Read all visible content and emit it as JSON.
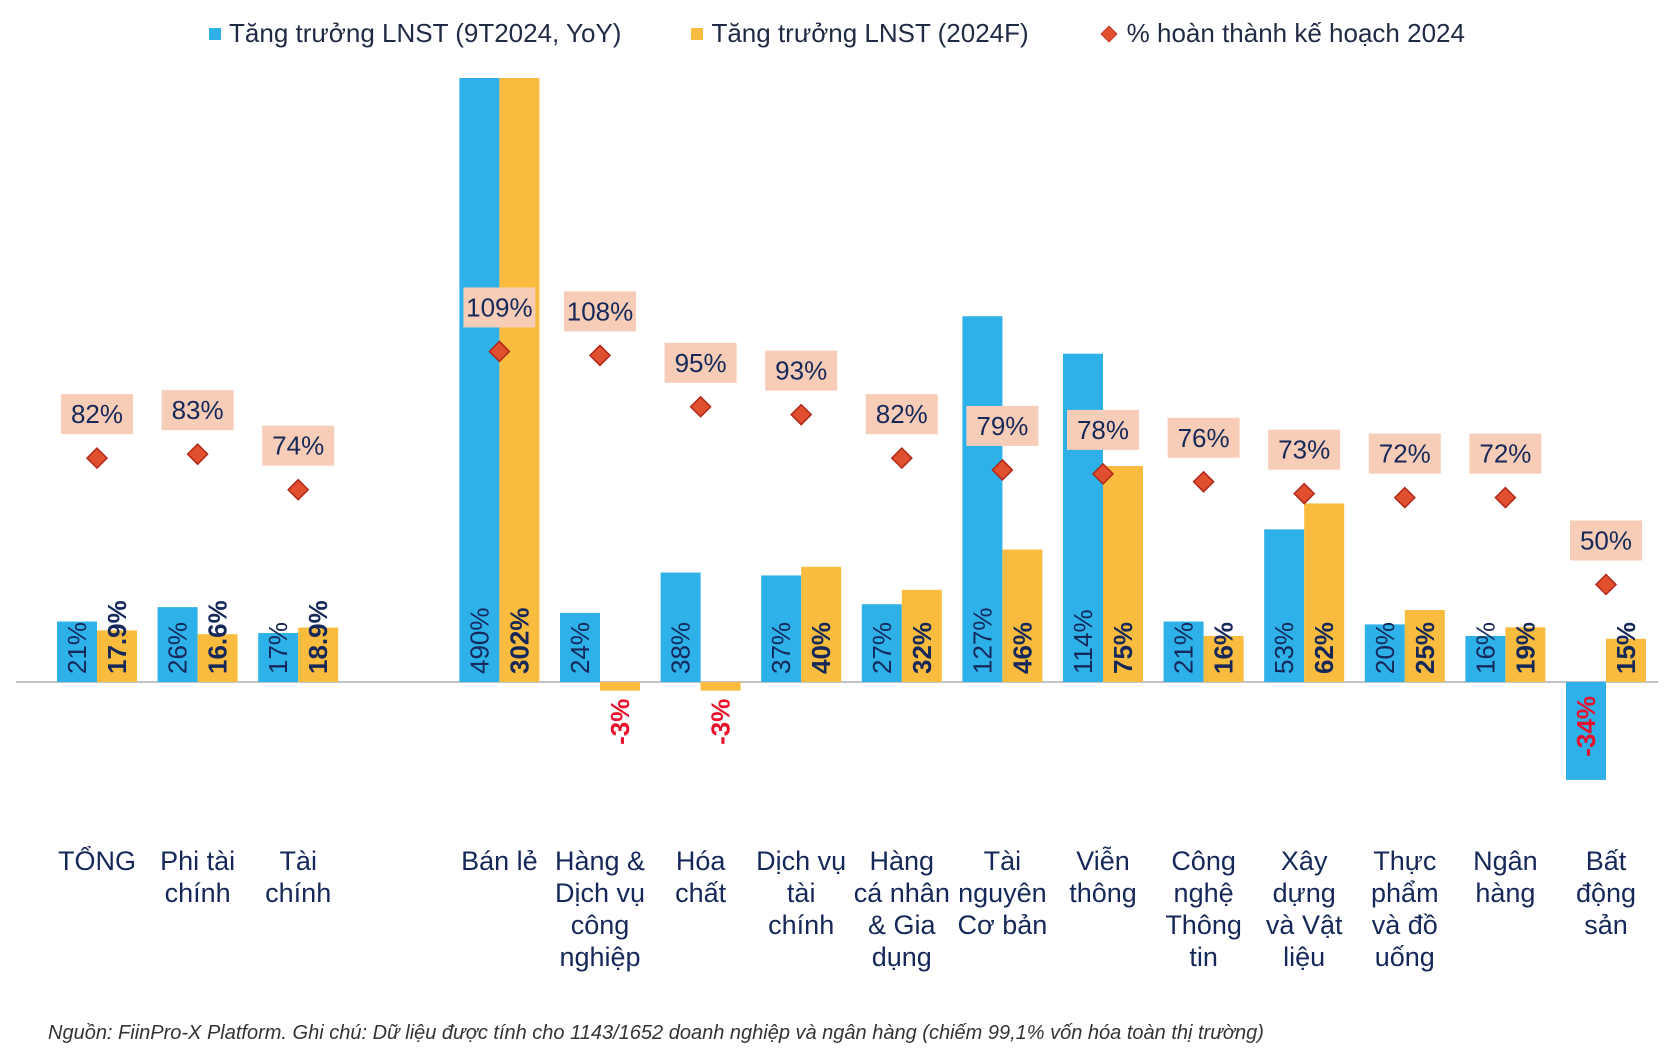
{
  "legend": {
    "items": [
      {
        "label": "Tăng trưởng LNST (9T2024, YoY)",
        "color": "#2DB1E8",
        "shape": "square"
      },
      {
        "label": "Tăng trưởng LNST (2024F)",
        "color": "#F9BC3F",
        "shape": "square"
      },
      {
        "label": "% hoàn thành kế hoạch 2024",
        "color": "#E0502E",
        "shape": "diamond"
      }
    ]
  },
  "footnote": "Nguồn: FiinPro-X Platform. Ghi chú: Dữ liệu được tính cho 1143/1652 doanh nghiệp và ngân hàng (chiếm 99,1% vốn hóa toàn thị trường)",
  "colors": {
    "blue": "#2DB1E8",
    "yellow": "#F9BC3F",
    "diamond": "#E0502E",
    "diamond_border": "#B0281A",
    "diamond_label_bg": "#F7CDB8",
    "label_dark": "#16285A",
    "label_negative": "#E8102A",
    "category_text": "#16285A"
  },
  "chart_data": {
    "type": "bar",
    "categories": [
      [
        "TỔNG"
      ],
      [
        "Phi tài",
        "chính"
      ],
      [
        "Tài",
        "chính"
      ],
      [
        "Bán lẻ"
      ],
      [
        "Hàng &",
        "Dịch vụ",
        "công",
        "nghiệp"
      ],
      [
        "Hóa",
        "chất"
      ],
      [
        "Dịch vụ",
        "tài",
        "chính"
      ],
      [
        "Hàng",
        "cá nhân",
        "& Gia",
        "dụng"
      ],
      [
        "Tài",
        "nguyên",
        "Cơ bản"
      ],
      [
        "Viễn",
        "thông"
      ],
      [
        "Công",
        "nghệ",
        "Thông",
        "tin"
      ],
      [
        "Xây",
        "dựng",
        "và Vật",
        "liệu"
      ],
      [
        "Thực",
        "phẩm",
        "và đồ",
        "uống"
      ],
      [
        "Ngân",
        "hàng"
      ],
      [
        "Bất",
        "động",
        "sản"
      ]
    ],
    "series": [
      {
        "name": "Tăng trưởng LNST (9T2024, YoY)",
        "values": [
          21,
          26,
          17,
          490,
          24,
          38,
          37,
          27,
          127,
          114,
          21,
          53,
          20,
          16,
          -34
        ],
        "labels": [
          "21%",
          "26%",
          "17%",
          "490%",
          "24%",
          "38%",
          "37%",
          "27%",
          "127%",
          "114%",
          "21%",
          "53%",
          "20%",
          "16%",
          "-34%"
        ]
      },
      {
        "name": "Tăng trưởng LNST (2024F)",
        "values": [
          17.9,
          16.6,
          18.9,
          302,
          -3,
          -3,
          40,
          32,
          46,
          75,
          16,
          62,
          25,
          19,
          15
        ],
        "labels": [
          "17.9%",
          "16.6%",
          "18.9%",
          "302%",
          "-3%",
          "-3%",
          "40%",
          "32%",
          "46%",
          "75%",
          "16%",
          "62%",
          "25%",
          "19%",
          "15%"
        ]
      },
      {
        "name": "% hoàn thành kế hoạch 2024",
        "values": [
          82,
          83,
          74,
          109,
          108,
          95,
          93,
          82,
          79,
          78,
          76,
          73,
          72,
          72,
          50
        ],
        "labels": [
          "82%",
          "83%",
          "74%",
          "109%",
          "108%",
          "95%",
          "93%",
          "82%",
          "79%",
          "78%",
          "76%",
          "73%",
          "72%",
          "72%",
          "50%"
        ]
      }
    ],
    "bar_axis_visible_max": 130,
    "bars_clipped_at_top": [
      "Bán lẻ"
    ],
    "gap_after_category_index": 2,
    "grid": false,
    "axis_labels_visible": false,
    "legend_position": "top"
  }
}
